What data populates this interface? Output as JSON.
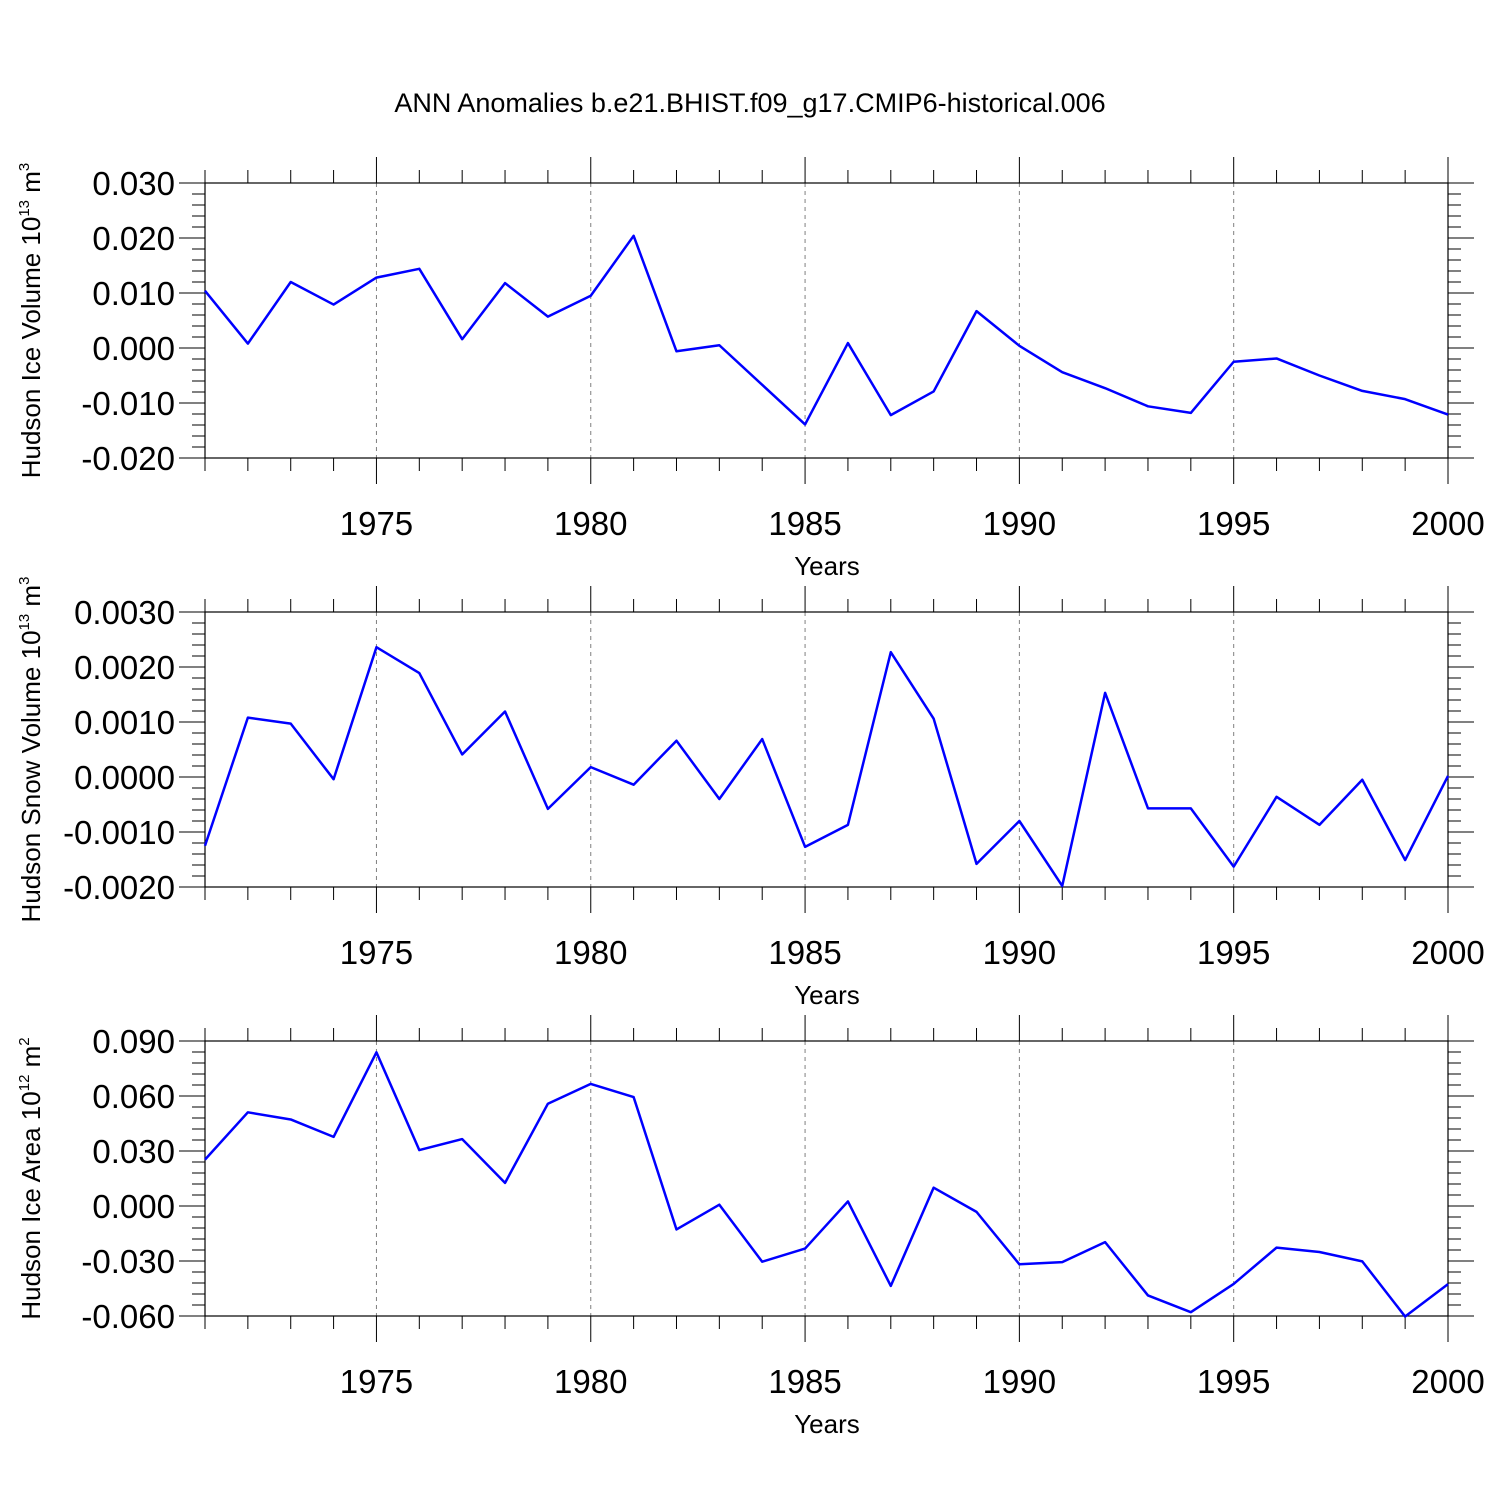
{
  "title": "ANN Anomalies b.e21.BHIST.f09_g17.CMIP6-historical.006",
  "chart_data": [
    {
      "type": "line",
      "ylabel": "Hudson Ice Volume 10",
      "ylabel_exp": "13",
      "ylabel_unit": " m",
      "ylabel_unit_exp": "3",
      "xlabel": "Years",
      "xlim": [
        1971,
        2000
      ],
      "ylim": [
        -0.02,
        0.03
      ],
      "yticks": [
        -0.02,
        -0.01,
        0.0,
        0.01,
        0.02,
        0.03
      ],
      "ytick_labels": [
        "-0.020",
        "-0.010",
        "0.000",
        "0.010",
        "0.020",
        "0.030"
      ],
      "xticks": [
        1975,
        1980,
        1985,
        1990,
        1995,
        2000
      ],
      "xtick_labels": [
        "1975",
        "1980",
        "1985",
        "1990",
        "1995",
        "2000"
      ],
      "line_color": "#0000ff",
      "x": [
        1971,
        1972,
        1973,
        1974,
        1975,
        1976,
        1977,
        1978,
        1979,
        1980,
        1981,
        1982,
        1983,
        1984,
        1985,
        1986,
        1987,
        1988,
        1989,
        1990,
        1991,
        1992,
        1993,
        1994,
        1995,
        1996,
        1997,
        1998,
        1999,
        2000
      ],
      "y": [
        0.0104,
        0.0008,
        0.012,
        0.0079,
        0.0128,
        0.0144,
        0.0016,
        0.0118,
        0.0057,
        0.0095,
        0.0204,
        -0.0006,
        0.0005,
        -0.0067,
        -0.0139,
        0.0009,
        -0.0122,
        -0.0079,
        0.0067,
        0.0004,
        -0.0044,
        -0.0073,
        -0.0106,
        -0.0118,
        -0.0025,
        -0.0019,
        -0.005,
        -0.0078,
        -0.0093,
        -0.0121
      ]
    },
    {
      "type": "line",
      "ylabel": "Hudson Snow Volume 10",
      "ylabel_exp": "13",
      "ylabel_unit": " m",
      "ylabel_unit_exp": "3",
      "xlabel": "Years",
      "xlim": [
        1971,
        2000
      ],
      "ylim": [
        -0.002,
        0.003
      ],
      "yticks": [
        -0.002,
        -0.001,
        0.0,
        0.001,
        0.002,
        0.003
      ],
      "ytick_labels": [
        "-0.0020",
        "-0.0010",
        "0.0000",
        "0.0010",
        "0.0020",
        "0.0030"
      ],
      "xticks": [
        1975,
        1980,
        1985,
        1990,
        1995,
        2000
      ],
      "xtick_labels": [
        "1975",
        "1980",
        "1985",
        "1990",
        "1995",
        "2000"
      ],
      "line_color": "#0000ff",
      "x": [
        1971,
        1972,
        1973,
        1974,
        1975,
        1976,
        1977,
        1978,
        1979,
        1980,
        1981,
        1982,
        1983,
        1984,
        1985,
        1986,
        1987,
        1988,
        1989,
        1990,
        1991,
        1992,
        1993,
        1994,
        1995,
        1996,
        1997,
        1998,
        1999,
        2000
      ],
      "y": [
        -0.00125,
        0.00108,
        0.00097,
        -4e-05,
        0.00236,
        0.00189,
        0.00041,
        0.00119,
        -0.00058,
        0.00018,
        -0.00014,
        0.00066,
        -0.0004,
        0.00069,
        -0.00127,
        -0.00087,
        0.00227,
        0.00106,
        -0.00158,
        -0.0008,
        -0.00198,
        0.00153,
        -0.00057,
        -0.00057,
        -0.00163,
        -0.00036,
        -0.00087,
        -5e-05,
        -0.00151,
        2e-05
      ]
    },
    {
      "type": "line",
      "ylabel": "Hudson Ice Area 10",
      "ylabel_exp": "12",
      "ylabel_unit": " m",
      "ylabel_unit_exp": "2",
      "xlabel": "Years",
      "xlim": [
        1971,
        2000
      ],
      "ylim": [
        -0.06,
        0.09
      ],
      "yticks": [
        -0.06,
        -0.03,
        0.0,
        0.03,
        0.06,
        0.09
      ],
      "ytick_labels": [
        "-0.060",
        "-0.030",
        "0.000",
        "0.030",
        "0.060",
        "0.090"
      ],
      "xticks": [
        1975,
        1980,
        1985,
        1990,
        1995,
        2000
      ],
      "xtick_labels": [
        "1975",
        "1980",
        "1985",
        "1990",
        "1995",
        "2000"
      ],
      "line_color": "#0000ff",
      "x": [
        1971,
        1972,
        1973,
        1974,
        1975,
        1976,
        1977,
        1978,
        1979,
        1980,
        1981,
        1982,
        1983,
        1984,
        1985,
        1986,
        1987,
        1988,
        1989,
        1990,
        1991,
        1992,
        1993,
        1994,
        1995,
        1996,
        1997,
        1998,
        1999,
        2000
      ],
      "y": [
        0.0253,
        0.0511,
        0.0472,
        0.0377,
        0.0838,
        0.0305,
        0.0365,
        0.0126,
        0.0558,
        0.0666,
        0.0594,
        -0.0128,
        0.0007,
        -0.0304,
        -0.0232,
        0.0025,
        -0.0436,
        0.01,
        -0.0032,
        -0.0318,
        -0.0306,
        -0.0197,
        -0.0488,
        -0.0579,
        -0.0425,
        -0.0227,
        -0.0251,
        -0.0302,
        -0.0603,
        -0.0426
      ]
    }
  ]
}
